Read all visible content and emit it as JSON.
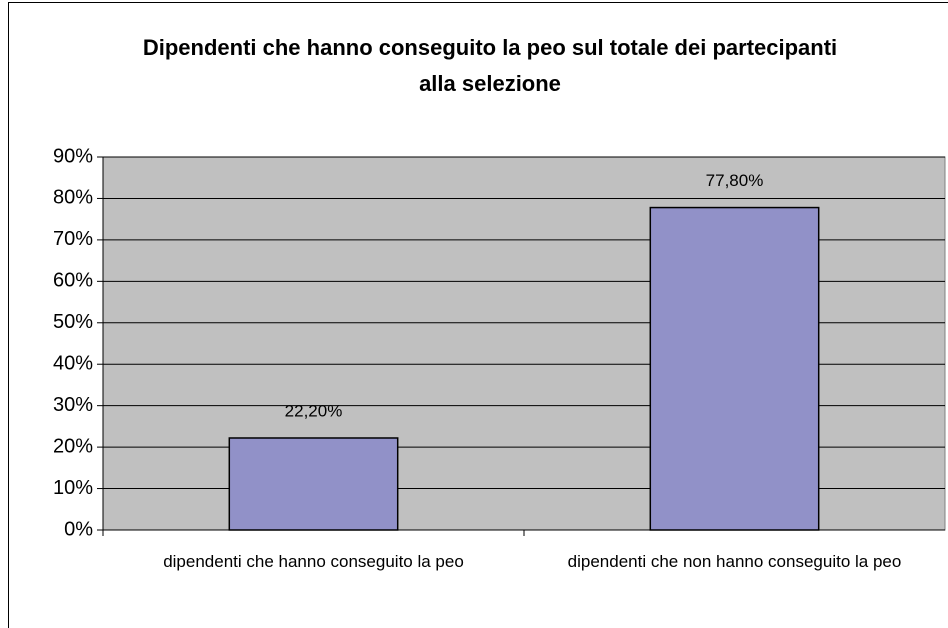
{
  "chart_data": {
    "type": "bar",
    "title": "Dipendenti che hanno conseguito la peo sul totale dei partecipanti alla selezione",
    "categories": [
      "dipendenti che hanno conseguito la peo",
      "dipendenti che non hanno conseguito la peo"
    ],
    "values": [
      22.2,
      77.8
    ],
    "value_labels": [
      "22,20%",
      "77,80%"
    ],
    "color": "#9191c8",
    "ylim": [
      0,
      90
    ],
    "yticks": [
      {
        "value": 0,
        "label": "0%"
      },
      {
        "value": 10,
        "label": "10%"
      },
      {
        "value": 20,
        "label": "20%"
      },
      {
        "value": 30,
        "label": "30%"
      },
      {
        "value": 40,
        "label": "40%"
      },
      {
        "value": 50,
        "label": "50%"
      },
      {
        "value": 60,
        "label": "60%"
      },
      {
        "value": 70,
        "label": "70%"
      },
      {
        "value": 80,
        "label": "80%"
      },
      {
        "value": 90,
        "label": "90%"
      }
    ],
    "grid": true
  }
}
